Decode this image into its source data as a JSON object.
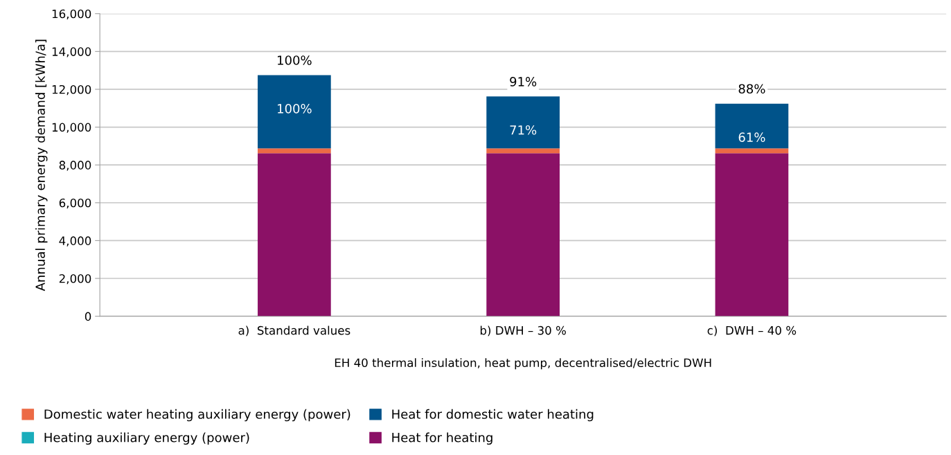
{
  "chart_data": {
    "type": "bar",
    "stacked": true,
    "categories": [
      "a)  Standard values",
      "b) DWH – 30 %",
      "c)  DWH – 40 %"
    ],
    "xlabel": "EH 40 thermal insulation, heat pump, decentralised/electric DWH",
    "ylabel": "Annual primary energy demand [kWh/a]",
    "series": [
      {
        "name": "Heat for heating",
        "color": "#8b1166",
        "values": [
          8620,
          8620,
          8620
        ]
      },
      {
        "name": "Heating auxiliary energy (power)",
        "color": "#1aadbb",
        "values": [
          0,
          0,
          0
        ]
      },
      {
        "name": "Domestic water heating auxiliary energy (power)",
        "color": "#ec6a45",
        "values": [
          260,
          260,
          260
        ]
      },
      {
        "name": "Heat for domestic water heating",
        "color": "#00538a",
        "values": [
          3870,
          2740,
          2360
        ]
      }
    ],
    "annotations": [
      {
        "text": "100%",
        "x": "a)  Standard values",
        "y": 12750
      },
      {
        "text": "71%",
        "x": "b) DWH – 30 %",
        "y": 11620
      },
      {
        "text": "61%",
        "x": "c)  DWH – 40 %",
        "y": 11240
      },
      {
        "text": "100%",
        "x": "a)  Standard values",
        "y": 12750
      },
      {
        "text": "91%",
        "x": "b) DWH – 30 %",
        "y": 11620
      },
      {
        "text": "88%",
        "x": "c)  DWH – 40 %",
        "y": 11240
      }
    ],
    "ylim": [
      0,
      16000
    ],
    "yticks": [
      {
        "value": 0,
        "label": "0"
      },
      {
        "value": 2000,
        "label": "2,000"
      },
      {
        "value": 4000,
        "label": "4,000"
      },
      {
        "value": 6000,
        "label": "6,000"
      },
      {
        "value": 8000,
        "label": "8,000"
      },
      {
        "value": 10000,
        "label": "10,000"
      },
      {
        "value": 12000,
        "label": "12,000"
      },
      {
        "value": 14000,
        "label": "14,000"
      },
      {
        "value": 16000,
        "label": "16,000"
      }
    ],
    "grid": "y",
    "legend": "bottom left"
  }
}
